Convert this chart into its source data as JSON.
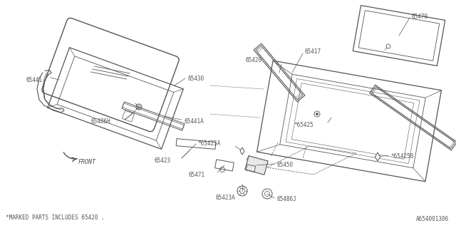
{
  "bg_color": "#ffffff",
  "line_color": "#555555",
  "lw": 0.8,
  "footer_left": "*MARKED PARTS INCLUDES 65420 .",
  "footer_right": "A654001306",
  "front_label": "FRONT"
}
